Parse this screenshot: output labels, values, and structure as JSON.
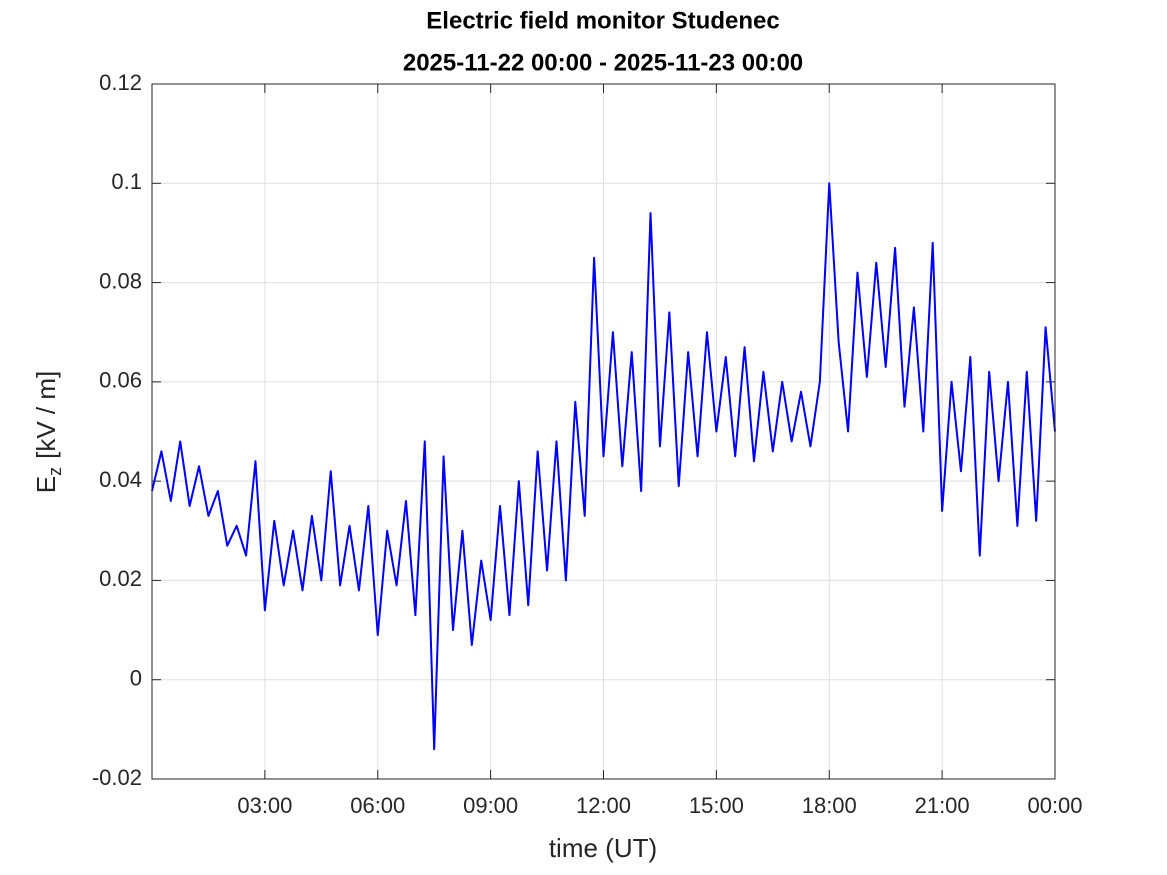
{
  "chart_data": {
    "type": "line",
    "title": "Electric field monitor Studenec",
    "subtitle": "2025-11-22 00:00 - 2025-11-23 00:00",
    "xlabel": "time (UT)",
    "ylabel": {
      "symbol": "E",
      "subscript": "z",
      "unit": "[kV / m]"
    },
    "x": [
      0,
      0.25,
      0.5,
      0.75,
      1,
      1.25,
      1.5,
      1.75,
      2,
      2.25,
      2.5,
      2.75,
      3,
      3.25,
      3.5,
      3.75,
      4,
      4.25,
      4.5,
      4.75,
      5,
      5.25,
      5.5,
      5.75,
      6,
      6.25,
      6.5,
      6.75,
      7,
      7.25,
      7.5,
      7.75,
      8,
      8.25,
      8.5,
      8.75,
      9,
      9.25,
      9.5,
      9.75,
      10,
      10.25,
      10.5,
      10.75,
      11,
      11.25,
      11.5,
      11.75,
      12,
      12.25,
      12.5,
      12.75,
      13,
      13.25,
      13.5,
      13.75,
      14,
      14.25,
      14.5,
      14.75,
      15,
      15.25,
      15.5,
      15.75,
      16,
      16.25,
      16.5,
      16.75,
      17,
      17.25,
      17.5,
      17.75,
      18,
      18.25,
      18.5,
      18.75,
      19,
      19.25,
      19.5,
      19.75,
      20,
      20.25,
      20.5,
      20.75,
      21,
      21.25,
      21.5,
      21.75,
      22,
      22.25,
      22.5,
      22.75,
      23,
      23.25,
      23.5,
      23.75,
      24
    ],
    "series": [
      {
        "name": "Ez",
        "color": "#0000ff",
        "values": [
          0.038,
          0.046,
          0.036,
          0.048,
          0.035,
          0.043,
          0.033,
          0.038,
          0.027,
          0.031,
          0.025,
          0.044,
          0.014,
          0.032,
          0.019,
          0.03,
          0.018,
          0.033,
          0.02,
          0.042,
          0.019,
          0.031,
          0.018,
          0.035,
          0.009,
          0.03,
          0.019,
          0.036,
          0.013,
          0.048,
          -0.014,
          0.045,
          0.01,
          0.03,
          0.007,
          0.024,
          0.012,
          0.035,
          0.013,
          0.04,
          0.015,
          0.046,
          0.022,
          0.048,
          0.02,
          0.056,
          0.033,
          0.085,
          0.045,
          0.07,
          0.043,
          0.066,
          0.038,
          0.094,
          0.047,
          0.074,
          0.039,
          0.066,
          0.045,
          0.07,
          0.05,
          0.065,
          0.045,
          0.067,
          0.044,
          0.062,
          0.046,
          0.06,
          0.048,
          0.058,
          0.047,
          0.06,
          0.1,
          0.068,
          0.05,
          0.082,
          0.061,
          0.084,
          0.063,
          0.087,
          0.055,
          0.075,
          0.05,
          0.088,
          0.034,
          0.06,
          0.042,
          0.065,
          0.025,
          0.062,
          0.04,
          0.06,
          0.031,
          0.062,
          0.032,
          0.071,
          0.05
        ]
      }
    ],
    "xlim": [
      0,
      24
    ],
    "xticks": [
      {
        "value": 3,
        "label": "03:00"
      },
      {
        "value": 6,
        "label": "06:00"
      },
      {
        "value": 9,
        "label": "09:00"
      },
      {
        "value": 12,
        "label": "12:00"
      },
      {
        "value": 15,
        "label": "15:00"
      },
      {
        "value": 18,
        "label": "18:00"
      },
      {
        "value": 21,
        "label": "21:00"
      },
      {
        "value": 24,
        "label": "00:00"
      }
    ],
    "ylim": [
      -0.02,
      0.12
    ],
    "yticks": [
      -0.02,
      0,
      0.02,
      0.04,
      0.06,
      0.08,
      0.1,
      0.12
    ],
    "grid": true
  }
}
